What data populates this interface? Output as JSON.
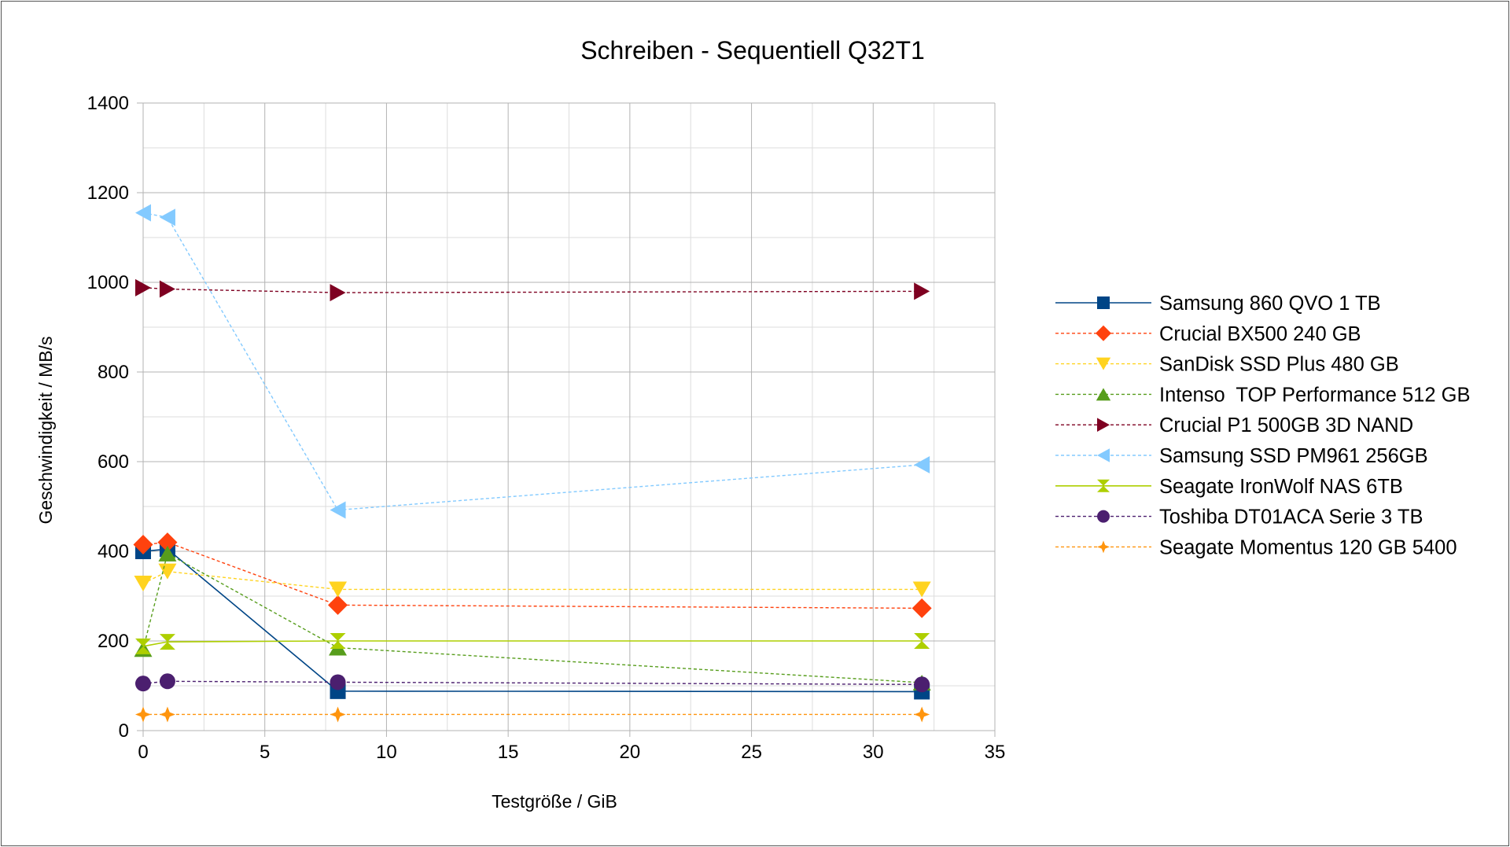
{
  "chart_data": {
    "type": "line",
    "title": "Schreiben - Sequentiell Q32T1",
    "xlabel": "Testgröße / GiB",
    "ylabel": "Geschwindigkeit / MB/s",
    "xlim": [
      0,
      35
    ],
    "ylim": [
      0,
      1400
    ],
    "xticks": [
      0,
      5,
      10,
      15,
      20,
      25,
      30,
      35
    ],
    "yticks": [
      0,
      200,
      400,
      600,
      800,
      1000,
      1200,
      1400
    ],
    "grid": true,
    "legend_position": "right",
    "series": [
      {
        "name": "Samsung 860 QVO 1 TB",
        "x": [
          0,
          1,
          8,
          32
        ],
        "y": [
          400,
          405,
          88,
          87
        ],
        "color": "#004586",
        "marker": "square",
        "dash": false
      },
      {
        "name": "Crucial BX500 240 GB",
        "x": [
          0,
          1,
          8,
          32
        ],
        "y": [
          415,
          420,
          280,
          273
        ],
        "color": "#ff420e",
        "marker": "diamond",
        "dash": true
      },
      {
        "name": "SanDisk SSD Plus 480 GB",
        "x": [
          0,
          1,
          8,
          32
        ],
        "y": [
          328,
          355,
          315,
          315
        ],
        "color": "#ffd320",
        "marker": "triangle-down",
        "dash": true
      },
      {
        "name": "Intenso  TOP Performance 512 GB",
        "x": [
          0,
          1,
          8,
          32
        ],
        "y": [
          182,
          395,
          185,
          107
        ],
        "color": "#579d1c",
        "marker": "triangle-up",
        "dash": true
      },
      {
        "name": "Crucial P1 500GB 3D NAND",
        "x": [
          0,
          1,
          8,
          32
        ],
        "y": [
          988,
          985,
          977,
          980
        ],
        "color": "#7e0021",
        "marker": "triangle-right",
        "dash": true
      },
      {
        "name": "Samsung SSD PM961 256GB",
        "x": [
          0,
          1,
          8,
          32
        ],
        "y": [
          1155,
          1145,
          492,
          593
        ],
        "color": "#83caff",
        "marker": "triangle-left",
        "dash": true
      },
      {
        "name": "Seagate IronWolf NAS 6TB",
        "x": [
          0,
          1,
          8,
          32
        ],
        "y": [
          188,
          198,
          200,
          200
        ],
        "color": "#aecf00",
        "marker": "hourglass",
        "dash": false
      },
      {
        "name": "Toshiba DT01ACA Serie 3 TB",
        "x": [
          0,
          1,
          8,
          32
        ],
        "y": [
          105,
          110,
          108,
          103
        ],
        "color": "#4b1f6f",
        "marker": "circle",
        "dash": true
      },
      {
        "name": "Seagate Momentus 120 GB 5400",
        "x": [
          0,
          1,
          8,
          32
        ],
        "y": [
          36,
          36,
          36,
          36
        ],
        "color": "#ff950e",
        "marker": "star4",
        "dash": true
      }
    ]
  }
}
